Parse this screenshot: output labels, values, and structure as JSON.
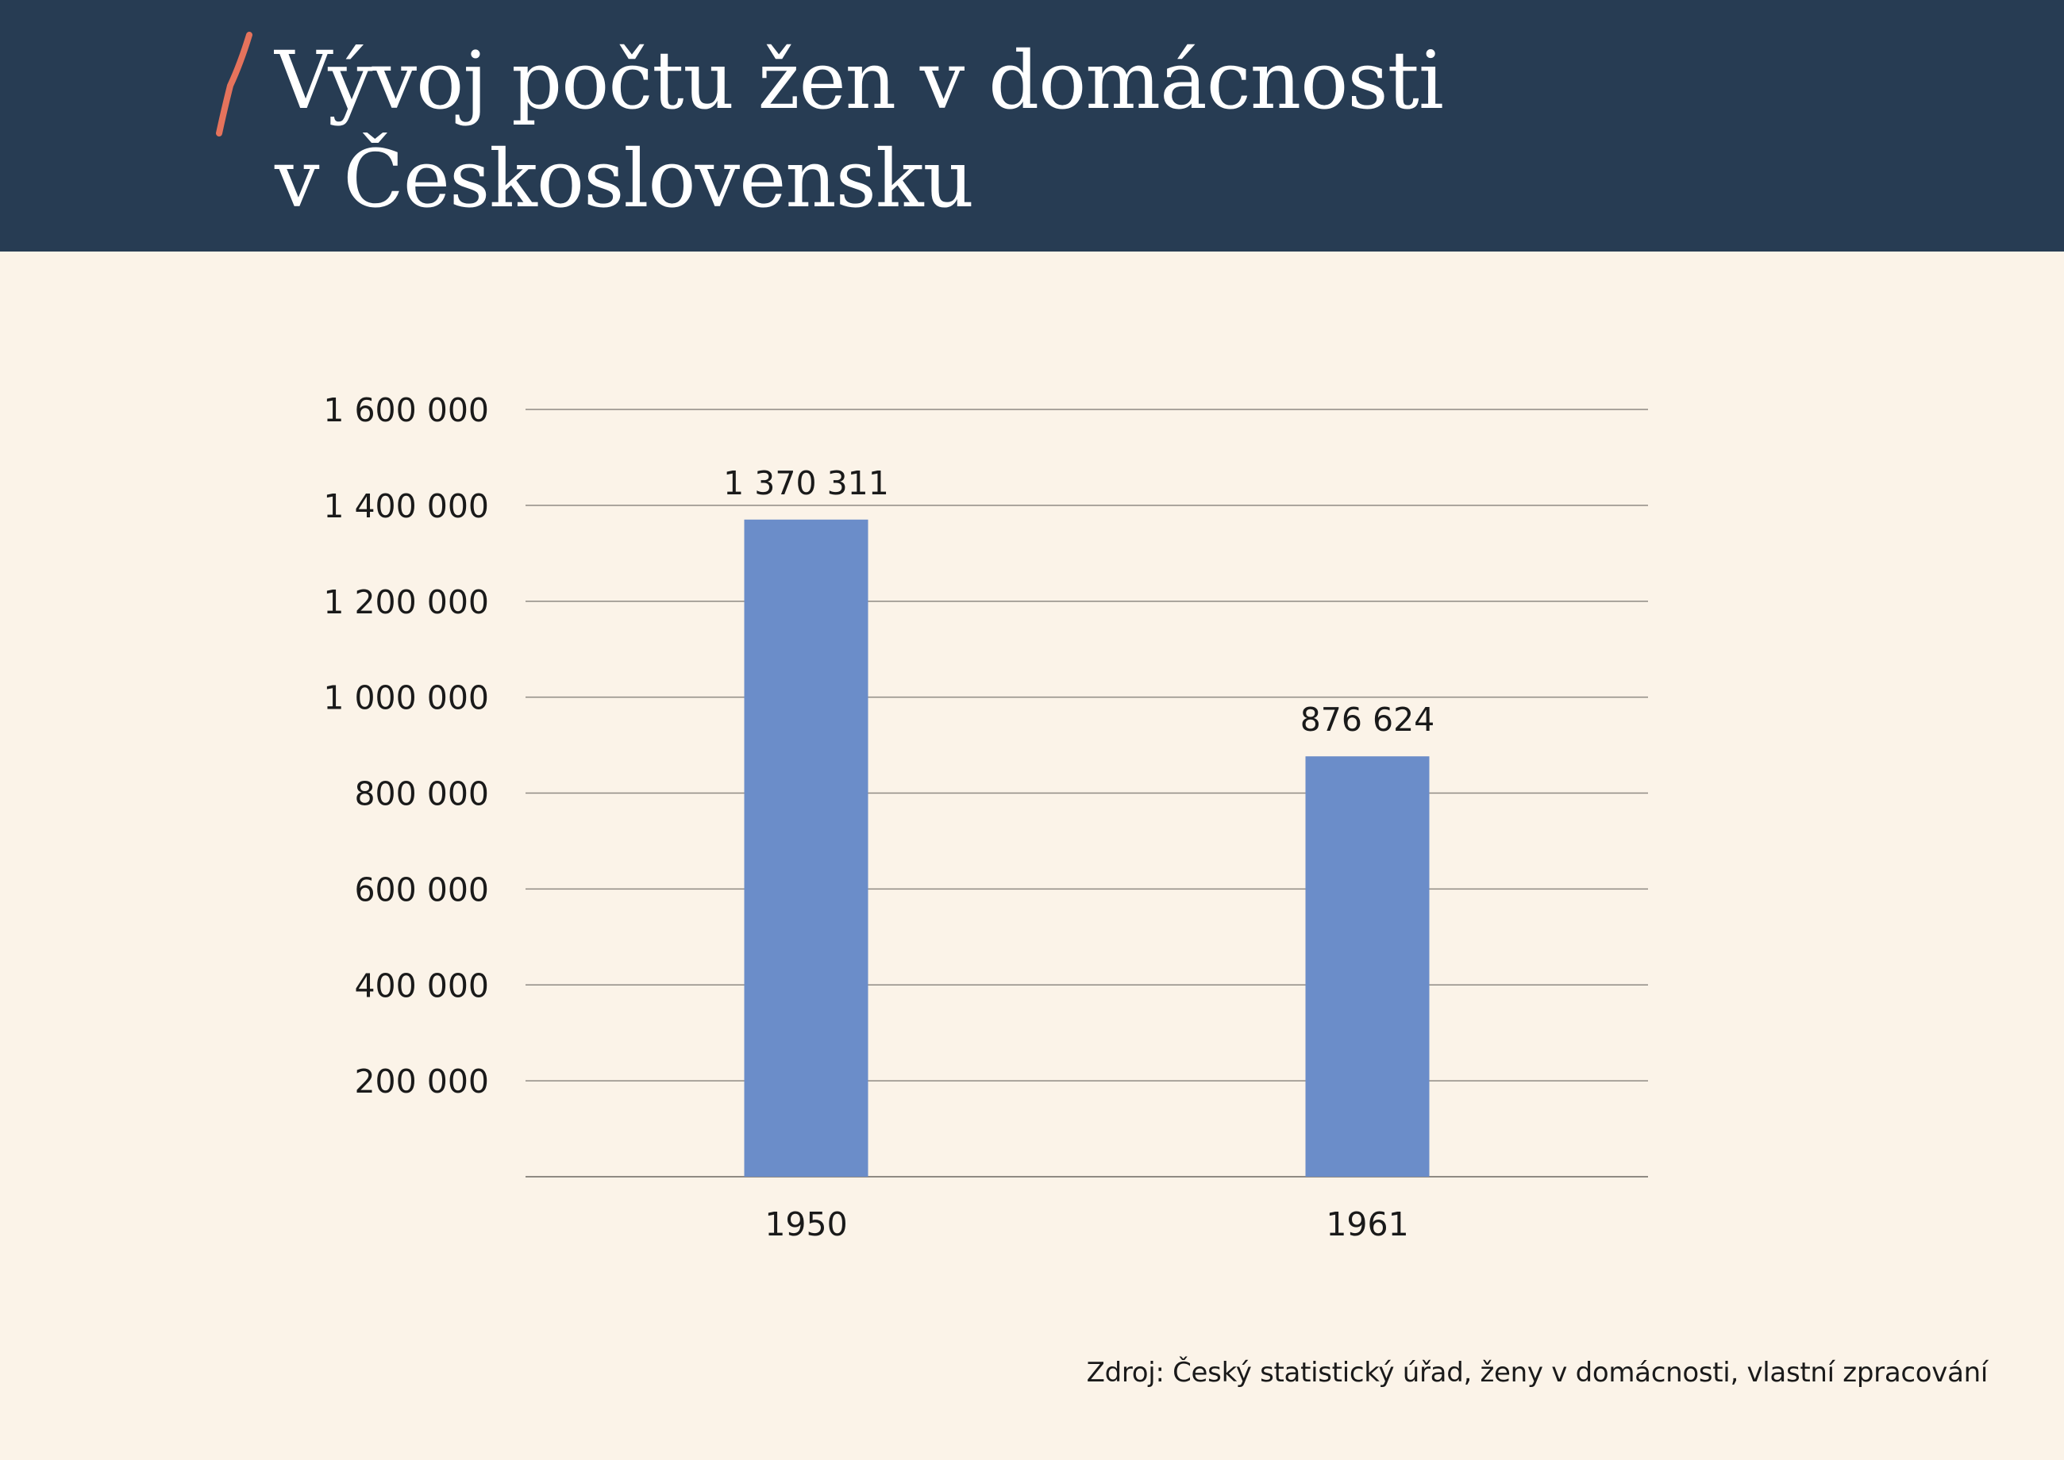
{
  "page": {
    "title_line1": "Vývoj počtu žen v domácnosti",
    "title_line2": "v Československu",
    "source": "Zdroj: Český statistický úřad, ženy v domácnosti, vlastní zpracování"
  },
  "colors": {
    "header_bg": "#273c53",
    "page_bg": "#fbf3e8",
    "accent": "#e5735c",
    "bar": "#6b8dc9",
    "grid": "#8f8a83"
  },
  "chart_data": {
    "type": "bar",
    "categories": [
      "1950",
      "1961"
    ],
    "values": [
      1370311,
      876624
    ],
    "value_labels": [
      "1 370 311",
      "876 624"
    ],
    "ylim": [
      0,
      1600000
    ],
    "yticks": [
      200000,
      400000,
      600000,
      800000,
      1000000,
      1200000,
      1400000,
      1600000
    ],
    "ytick_labels": [
      "200 000",
      "400 000",
      "600 000",
      "800 000",
      "1 000 000",
      "1 200 000",
      "1 400 000",
      "1 600 000"
    ],
    "grid": true,
    "legend": "none",
    "xlabel": "",
    "ylabel": ""
  }
}
